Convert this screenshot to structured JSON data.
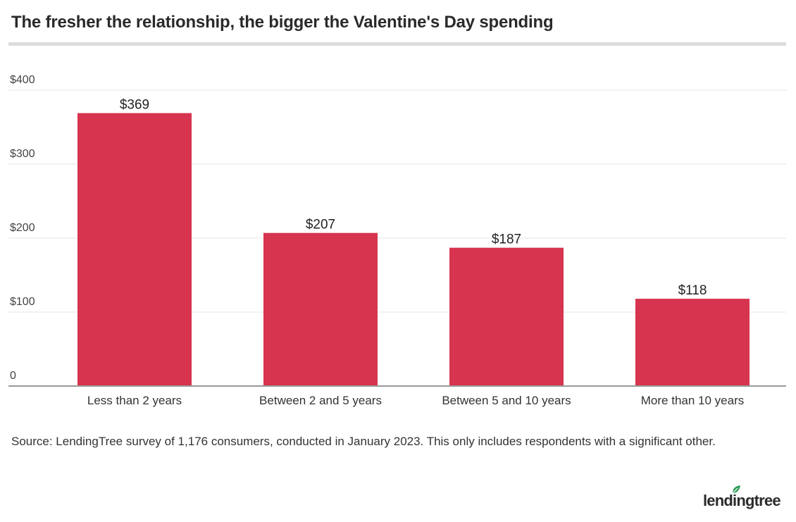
{
  "title": "The fresher the relationship, the bigger the Valentine's Day spending",
  "source": "Source: LendingTree survey of 1,176 consumers, conducted in January 2023. This only includes respondents with a significant other.",
  "logo_text": "lendingtree",
  "colors": {
    "bar": "#d7344f",
    "grid": "#e6e6e6",
    "axis": "#999999",
    "logo_leaf": "#2e9e57"
  },
  "chart_data": {
    "type": "bar",
    "title": "The fresher the relationship, the bigger the Valentine's Day spending",
    "categories": [
      "Less than 2 years",
      "Between 2 and 5 years",
      "Between 5 and 10 years",
      "More than 10 years"
    ],
    "values": [
      369,
      207,
      187,
      118
    ],
    "value_labels": [
      "$369",
      "$207",
      "$187",
      "$118"
    ],
    "ylim": [
      0,
      400
    ],
    "yticks": [
      0,
      100,
      200,
      300,
      400
    ],
    "ytick_labels": [
      "0",
      "$100",
      "$200",
      "$300",
      "$400"
    ],
    "xlabel": "",
    "ylabel": "",
    "grid": true,
    "legend": "none"
  }
}
